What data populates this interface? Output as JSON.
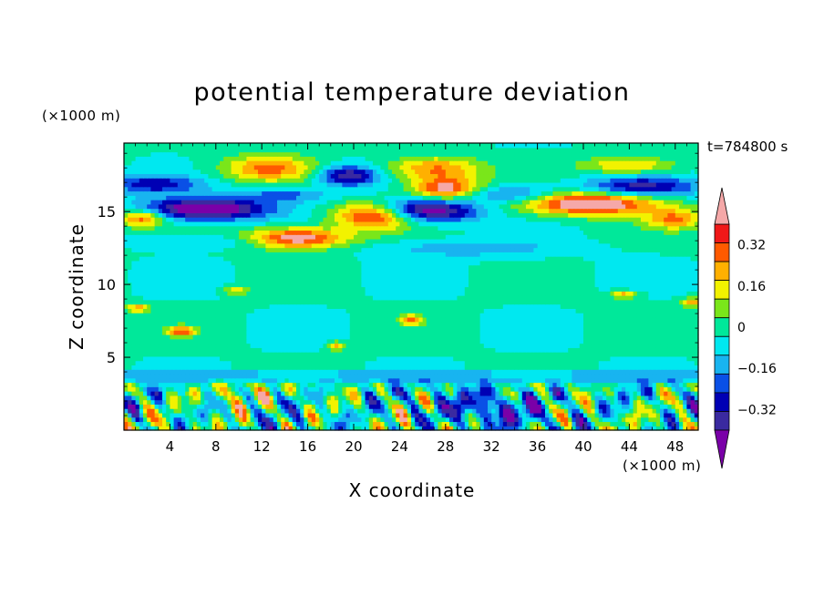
{
  "chart_data": {
    "type": "heatmap",
    "title": "potential temperature deviation",
    "time_label": "t=784800 s",
    "xlabel": "X coordinate",
    "ylabel": "Z coordinate",
    "x_units": "(×1000 m)",
    "y_units": "(×1000 m)",
    "x_ticks": [
      "4",
      "8",
      "12",
      "16",
      "20",
      "24",
      "28",
      "32",
      "36",
      "40",
      "44",
      "48"
    ],
    "y_ticks": [
      "5",
      "10",
      "15"
    ],
    "xlim": [
      0,
      50
    ],
    "ylim": [
      0,
      19.7
    ],
    "colorbar": {
      "labels": [
        "0.32",
        "0.16",
        "0",
        "−0.16",
        "−0.32"
      ],
      "label_values": [
        0.32,
        0.16,
        0,
        -0.16,
        -0.32
      ],
      "levels": [
        -0.4,
        -0.32,
        -0.24,
        -0.16,
        -0.08,
        0,
        0.08,
        0.16,
        0.24,
        0.32,
        0.4
      ],
      "colors": [
        "#7a00a8",
        "#3a2aa0",
        "#0000b4",
        "#0a50e6",
        "#18b4f0",
        "#00e8f0",
        "#00e89a",
        "#7ae61a",
        "#f2f200",
        "#ffb000",
        "#ff5a00",
        "#f01818",
        "#f5a8a8"
      ],
      "extend": "both"
    },
    "features": [
      {
        "x": 20.5,
        "z": 14.0,
        "value": 0.42
      },
      {
        "x": 27.0,
        "z": 17.6,
        "value": 0.3
      },
      {
        "x": 13.0,
        "z": 18.0,
        "value": 0.32
      },
      {
        "x": 40.0,
        "z": 15.8,
        "value": 0.42
      },
      {
        "x": 8.0,
        "z": 15.5,
        "value": -0.42
      },
      {
        "x": 26.0,
        "z": 15.3,
        "value": -0.42
      },
      {
        "x": 45.0,
        "z": 16.6,
        "value": -0.34
      },
      {
        "x": 19.5,
        "z": 17.5,
        "value": -0.36
      },
      {
        "x": 10.0,
        "z": 2.3,
        "value": 0.3
      },
      {
        "x": 32.0,
        "z": 1.6,
        "value": -0.36
      },
      {
        "x": 24.5,
        "z": 2.2,
        "value": 0.34
      }
    ]
  }
}
